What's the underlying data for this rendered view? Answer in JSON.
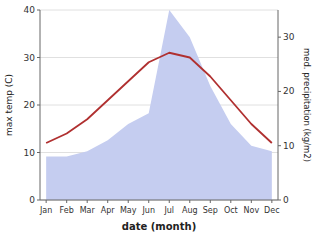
{
  "chart_data": {
    "type": "line",
    "categories": [
      "Jan",
      "Feb",
      "Mar",
      "Apr",
      "May",
      "Jun",
      "Jul",
      "Aug",
      "Sep",
      "Oct",
      "Nov",
      "Dec"
    ],
    "series": [
      {
        "type": "line",
        "color": "#b03030",
        "values": [
          12,
          14,
          17,
          21,
          25,
          29,
          31,
          30,
          26,
          21,
          16,
          12
        ]
      },
      {
        "type": "area",
        "axis": "y2",
        "color": "#c5cdf0",
        "values": [
          8,
          8,
          9,
          11,
          14,
          16,
          35,
          30,
          21,
          14,
          10,
          9
        ]
      }
    ],
    "x_label": "date (month)",
    "y_label": "max temp (C)",
    "y2_label": "med. precipitation (kg/m2)",
    "ylim": [
      0,
      40
    ],
    "yticks": [
      0,
      10,
      20,
      30,
      40
    ],
    "y2lim": [
      0,
      35
    ],
    "y2ticks": [
      0,
      10,
      20,
      30
    ],
    "grid": true
  }
}
